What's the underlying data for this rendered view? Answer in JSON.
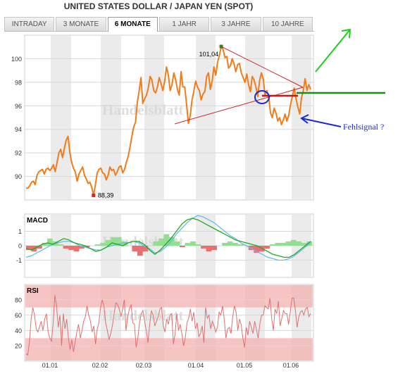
{
  "title": "UNITED STATES DOLLAR / JAPAN YEN (SPOT)",
  "tabs": [
    {
      "label": "INTRADAY",
      "active": false
    },
    {
      "label": "3 MONATE",
      "active": false
    },
    {
      "label": "6 MONATE",
      "active": true
    },
    {
      "label": "1 JAHR",
      "active": false
    },
    {
      "label": "3 JAHRE",
      "active": false
    },
    {
      "label": "10 JAHRE",
      "active": false
    }
  ],
  "watermark": "Handelsblatt",
  "annotation_text": "Fehlsignal ?",
  "colors": {
    "price_line": "#f07c1a",
    "band": "#ebebeb",
    "trendline": "#cc2020",
    "circle": "#1a2ad0",
    "arrow_green": "#18d218",
    "arrow_blue": "#1a2ad0",
    "level_green": "#1a8c1a",
    "level_red": "#c21a1a",
    "macd_line": "#22aa22",
    "signal_line": "#6ab8ee",
    "hist_pos": "#90e090",
    "hist_neg": "#e87070",
    "rsi_line": "#e07070",
    "rsi_zone": "#f4b0b0"
  },
  "chart_data": [
    {
      "type": "line",
      "title": "Price",
      "x_ticks": [
        "01.01",
        "02.02",
        "02.03",
        "01.04",
        "01.05",
        "01.06"
      ],
      "y_ticks": [
        90,
        92,
        94,
        96,
        98,
        100
      ],
      "ylim": [
        88,
        102
      ],
      "grid": true,
      "markers": [
        {
          "label": "101,04",
          "x_index": 107,
          "y": 101.04
        },
        {
          "label": "88,39",
          "x_index": 37,
          "y": 88.39
        }
      ],
      "series": [
        {
          "name": "",
          "values": [
            89.0,
            89.0,
            89.2,
            89.5,
            89.6,
            89.3,
            90.1,
            90.4,
            90.5,
            90.6,
            90.2,
            90.6,
            90.7,
            90.5,
            90.7,
            91.0,
            90.4,
            91.2,
            92.0,
            92.3,
            91.6,
            92.4,
            93.1,
            93.4,
            92.0,
            91.2,
            90.7,
            90.4,
            89.6,
            90.2,
            90.5,
            90.8,
            90.1,
            89.8,
            89.4,
            89.5,
            89.1,
            88.39,
            89.3,
            90.3,
            90.6,
            90.7,
            90.3,
            90.2,
            89.7,
            90.1,
            90.8,
            90.5,
            90.6,
            90.1,
            90.4,
            90.8,
            90.9,
            90.3,
            90.6,
            91.2,
            91.7,
            92.5,
            93.4,
            94.2,
            94.6,
            96.3,
            97.3,
            98.4,
            96.2,
            96.6,
            96.9,
            97.5,
            98.5,
            98.2,
            97.3,
            97.1,
            97.6,
            98.4,
            97.9,
            97.3,
            98.1,
            99.3,
            98.6,
            97.3,
            97.8,
            98.8,
            98.2,
            97.4,
            96.9,
            98.9,
            97.6,
            97.6,
            96.1,
            94.5,
            95.2,
            96.5,
            97.3,
            98.1,
            97.6,
            97.3,
            96.5,
            97.0,
            97.2,
            98.5,
            98.8,
            97.4,
            98.1,
            99.3,
            98.6,
            99.7,
            100.3,
            101.04,
            100.8,
            100.1,
            100.2,
            99.2,
            99.4,
            100.0,
            99.6,
            98.9,
            99.5,
            99.6,
            98.8,
            98.4,
            98.0,
            98.7,
            97.8,
            97.2,
            98.5,
            98.2,
            97.6,
            96.8,
            98.1,
            98.8,
            98.3,
            96.9,
            97.3,
            96.8,
            95.4,
            95.0,
            95.8,
            95.4,
            94.7,
            95.0,
            94.4,
            94.8,
            95.3,
            94.7,
            95.2,
            96.1,
            96.8,
            97.5,
            96.6,
            95.9,
            95.3,
            96.7,
            97.3,
            98.3,
            97.3,
            97.8,
            97.4
          ]
        }
      ]
    },
    {
      "type": "line",
      "title": "MACD",
      "y_ticks": [
        1,
        0,
        -1
      ],
      "ylim": [
        -2.2,
        2.2
      ],
      "series": [
        {
          "name": "",
          "values": [
            -0.2,
            -0.3,
            -0.1,
            0.1,
            0.2,
            0.1,
            0.3,
            0.5,
            0.4,
            0.2,
            0.1,
            0.0,
            -0.2,
            -0.4,
            -0.3,
            -0.1,
            0.2,
            0.1,
            0.0,
            0.2,
            0.3,
            0.3,
            0.1,
            -0.3,
            -0.6,
            -0.3,
            0.1,
            0.5,
            1.0,
            1.5,
            1.8,
            1.9,
            1.8,
            1.6,
            1.4,
            1.2,
            1.0,
            0.8,
            0.6,
            0.4,
            0.3,
            0.2,
            0.1,
            0.0,
            -0.2,
            -0.4,
            -0.6,
            -0.7,
            -0.8,
            -0.8,
            -0.6,
            -0.3,
            0.0,
            0.3
          ]
        },
        {
          "name": "",
          "values": [
            -0.8,
            -0.7,
            -0.5,
            -0.3,
            -0.1,
            0.1,
            0.2,
            0.3,
            0.3,
            0.2,
            0.0,
            -0.1,
            -0.2,
            -0.3,
            -0.3,
            -0.1,
            0.0,
            0.1,
            0.2,
            0.2,
            0.3,
            0.2,
            0.0,
            -0.2,
            -0.5,
            -0.4,
            -0.1,
            0.3,
            0.8,
            1.2,
            1.6,
            1.9,
            2.1,
            2.0,
            1.8,
            1.6,
            1.3,
            1.0,
            0.7,
            0.5,
            0.2,
            0.0,
            -0.2,
            -0.4,
            -0.6,
            -0.8,
            -0.9,
            -1.0,
            -1.0,
            -0.9,
            -0.7,
            -0.4,
            -0.1,
            0.2
          ]
        },
        {
          "name": "",
          "values": [
            -0.3,
            -0.4,
            -0.2,
            0.2,
            0.5,
            0.3,
            0.1,
            -0.2,
            -0.3,
            -0.4,
            -0.2,
            -0.1,
            0.0,
            0.1,
            0.2,
            0.4,
            0.6,
            0.6,
            0.3,
            0.0,
            -0.4,
            -0.7,
            -0.4,
            0.0,
            0.3,
            0.5,
            0.8,
            0.6,
            0.3,
            -0.1,
            0.2,
            0.3,
            0.1,
            -0.2,
            -0.4,
            -0.3,
            0.0,
            0.2,
            0.3,
            0.2,
            0.1,
            0.0,
            -0.3,
            -0.5,
            -0.4,
            -0.2,
            0.1,
            0.2,
            0.2,
            0.3,
            0.4,
            0.3,
            0.2,
            0.3
          ]
        }
      ]
    },
    {
      "type": "line",
      "title": "RSI",
      "y_ticks": [
        20,
        40,
        60,
        80
      ],
      "ylim": [
        0,
        100
      ],
      "zones": [
        30,
        70
      ],
      "series": [
        {
          "name": "",
          "values": [
            10,
            8,
            25,
            55,
            70,
            60,
            42,
            38,
            45,
            52,
            40,
            55,
            62,
            38,
            30,
            26,
            50,
            86,
            72,
            44,
            60,
            20,
            62,
            42,
            55,
            30,
            15,
            28,
            12,
            25,
            38,
            48,
            30,
            40,
            52,
            58,
            72,
            60,
            52,
            38,
            46,
            22,
            42,
            50,
            70,
            80,
            72,
            50,
            40,
            28,
            36,
            46,
            62,
            76,
            74,
            68,
            58,
            68,
            80,
            40,
            58,
            68,
            74,
            50,
            48,
            18,
            30,
            50,
            62,
            66,
            52,
            40,
            24,
            48,
            66,
            60,
            46,
            52,
            58,
            68,
            70,
            46,
            38,
            55,
            48,
            60,
            62,
            22,
            36,
            62,
            40,
            48,
            36,
            20,
            30,
            50,
            56,
            68,
            52,
            64,
            42,
            50,
            32,
            36,
            46,
            24,
            70,
            56,
            60,
            42,
            52,
            46,
            38,
            44,
            64,
            60,
            72,
            54,
            30,
            42,
            44,
            36,
            58,
            72,
            64,
            40,
            55,
            48,
            30,
            18,
            44,
            34,
            52,
            44,
            36,
            52,
            42,
            30,
            48,
            60,
            60,
            72,
            70,
            68,
            82,
            56,
            40,
            68,
            62,
            78,
            46,
            56,
            66,
            62,
            62,
            48,
            64,
            82,
            82,
            66,
            44,
            58,
            64,
            66,
            60,
            68,
            70,
            58,
            62
          ]
        }
      ]
    }
  ]
}
